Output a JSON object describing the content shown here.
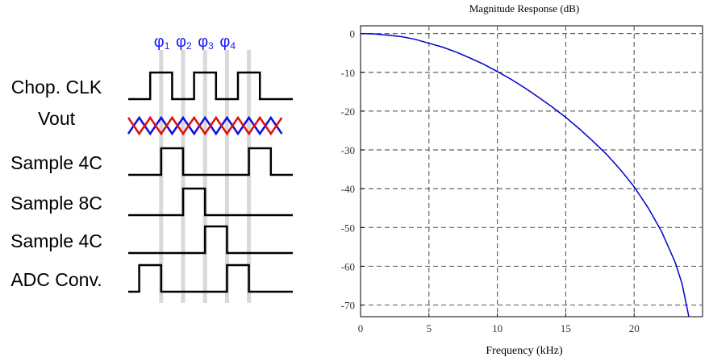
{
  "timing": {
    "phases": [
      {
        "base": "φ",
        "sub": "1"
      },
      {
        "base": "φ",
        "sub": "2"
      },
      {
        "base": "φ",
        "sub": "3"
      },
      {
        "base": "φ",
        "sub": "4"
      }
    ],
    "signals": [
      {
        "label": "Chop. CLK",
        "pulses": [
          [
            1,
            2
          ],
          [
            3,
            4
          ],
          [
            5,
            6
          ]
        ]
      },
      {
        "label": "Vout",
        "crossing": true
      },
      {
        "label": "Sample 4C",
        "pulses": [
          [
            1.5,
            2.5
          ],
          [
            5.5,
            6.5
          ]
        ]
      },
      {
        "label": "Sample 8C",
        "pulses": [
          [
            2.5,
            3.5
          ]
        ]
      },
      {
        "label": "Sample 4C",
        "pulses": [
          [
            3.5,
            4.5
          ]
        ]
      },
      {
        "label": "ADC Conv.",
        "pulses": [
          [
            0.5,
            1.5
          ],
          [
            4.5,
            5.5
          ]
        ]
      }
    ],
    "colors": {
      "phase_label": "#1a1aff",
      "guide": "#d9d9d9",
      "vout_a": "#e01010",
      "vout_b": "#1010e0",
      "trace": "#000000"
    }
  },
  "chart_data": {
    "type": "line",
    "title": "Magnitude Response (dB)",
    "xlabel": "Frequency (kHz)",
    "ylabel": "",
    "xlim": [
      0,
      25
    ],
    "ylim": [
      -73,
      2
    ],
    "xticks": [
      0,
      5,
      10,
      15,
      20
    ],
    "yticks": [
      0,
      -10,
      -20,
      -30,
      -40,
      -50,
      -60,
      -70
    ],
    "grid": true,
    "series": [
      {
        "color": "#0000cc",
        "x": [
          0,
          1,
          2,
          3,
          4,
          5,
          6,
          7,
          8,
          9,
          10,
          11,
          12,
          13,
          14,
          15,
          16,
          17,
          18,
          19,
          20,
          21,
          22,
          23,
          23.5,
          24
        ],
        "y": [
          0,
          -0.1,
          -0.4,
          -0.8,
          -1.5,
          -2.5,
          -3.5,
          -4.8,
          -6.3,
          -7.9,
          -9.8,
          -11.8,
          -14.0,
          -16.4,
          -18.9,
          -21.6,
          -24.6,
          -27.8,
          -31.2,
          -35.1,
          -39.5,
          -44.8,
          -51.0,
          -59.0,
          -64.5,
          -73
        ]
      }
    ]
  }
}
